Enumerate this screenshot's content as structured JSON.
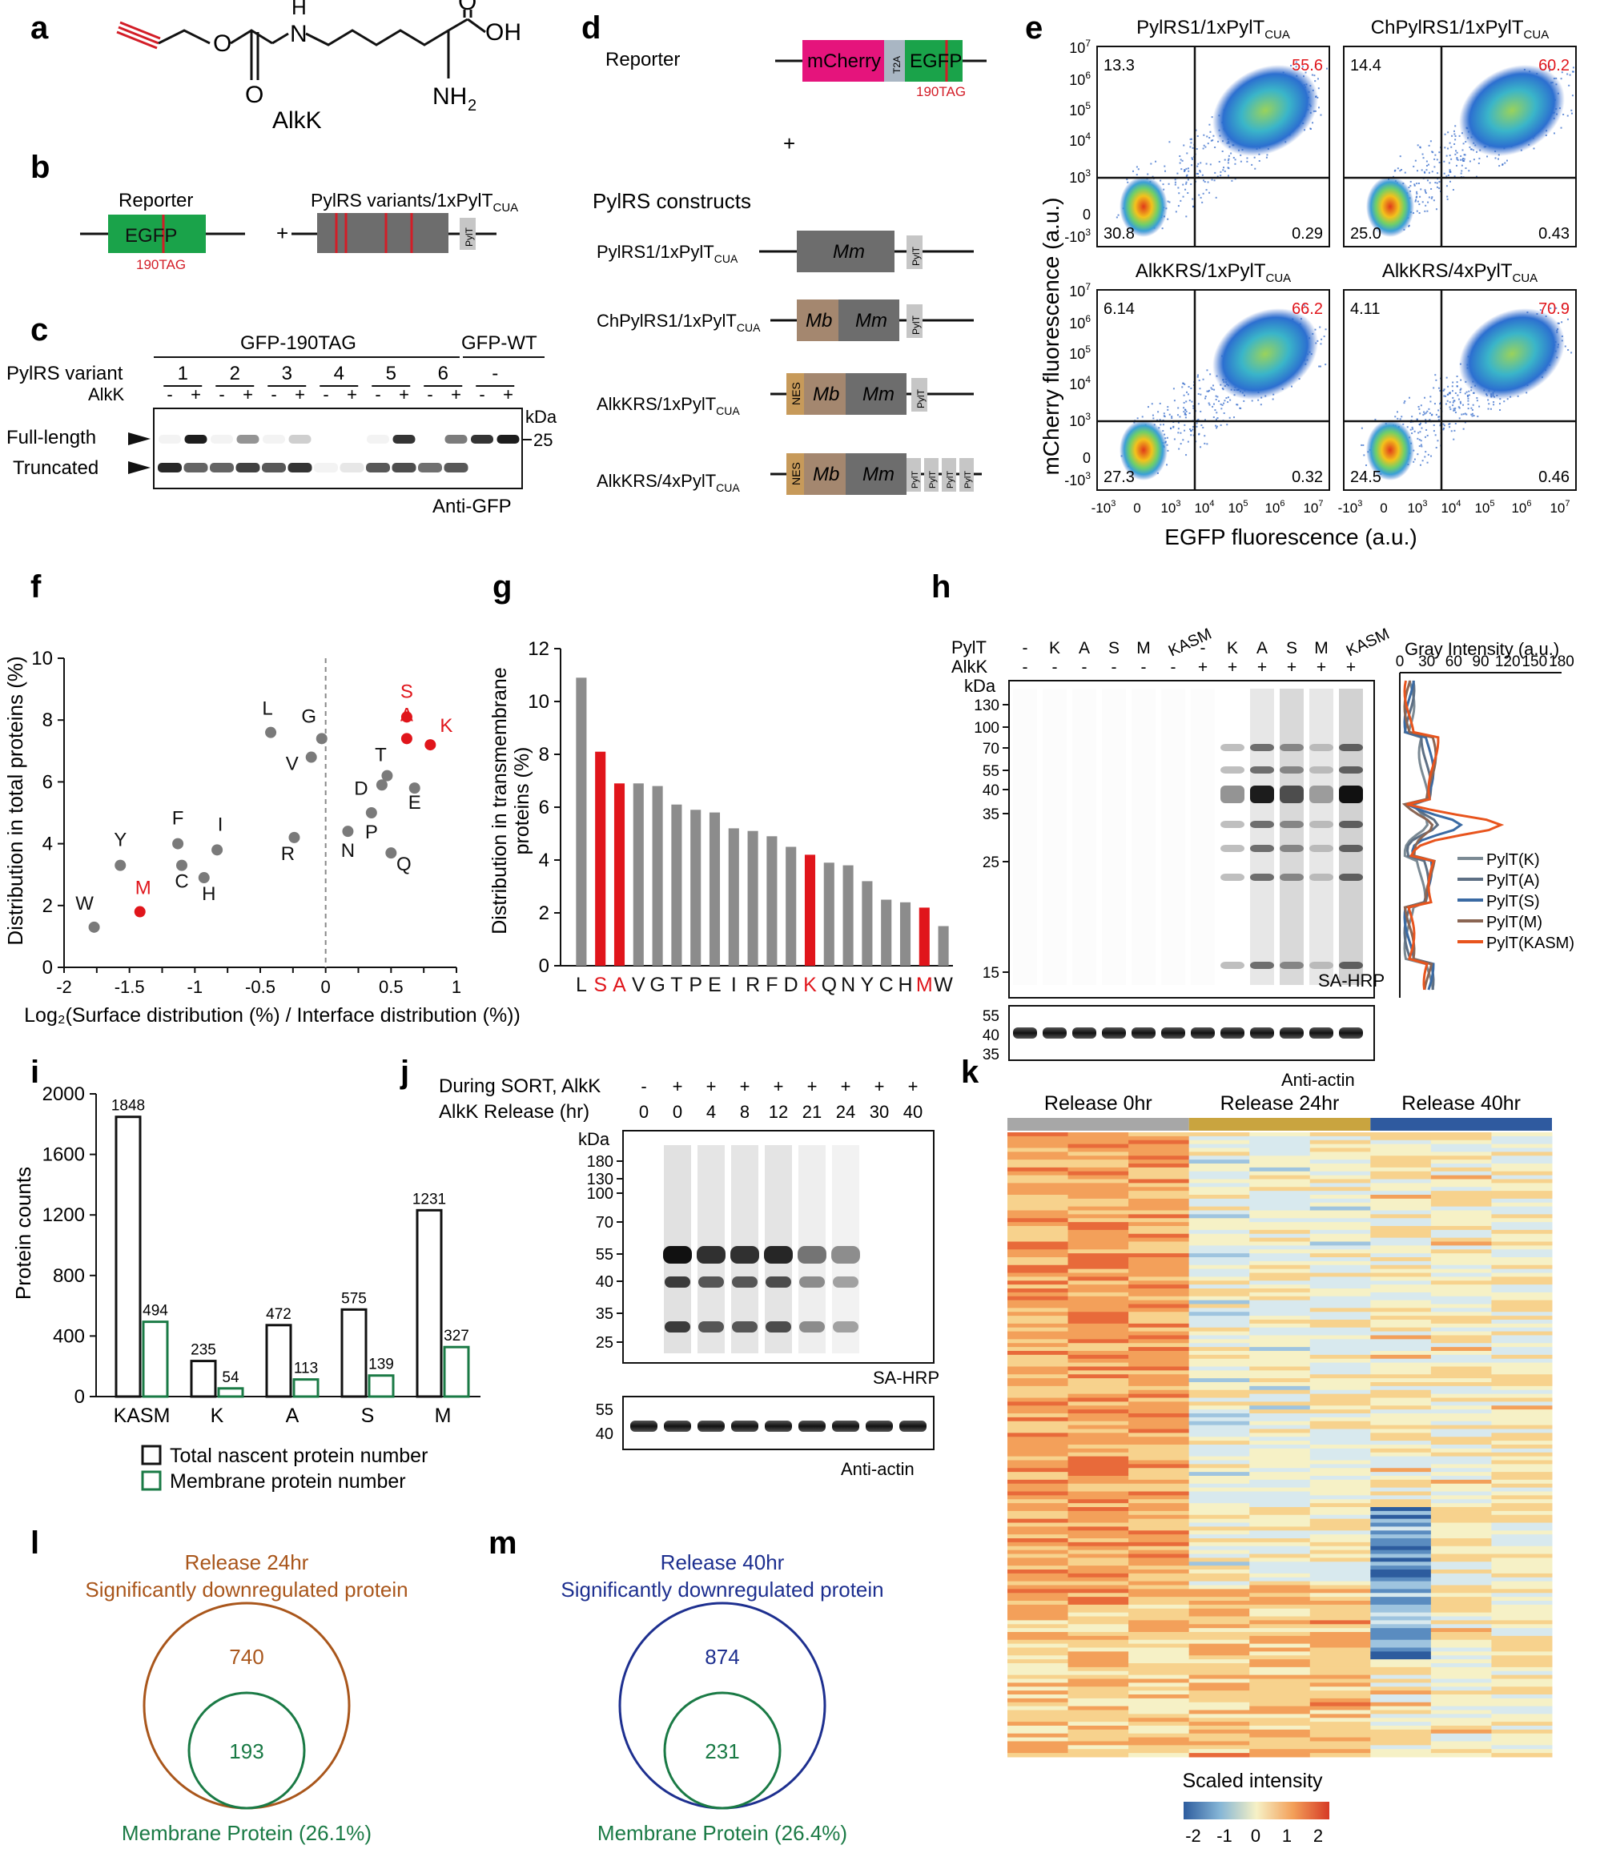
{
  "panels": {
    "a": {
      "letter": "a",
      "compound": "AlkK",
      "atoms": {
        "o1": "O",
        "o2": "O",
        "o3": "O",
        "oh": "OH",
        "nh_top": "H",
        "n_top": "N",
        "nh2": "NH",
        "sub2": "2"
      }
    },
    "b": {
      "letter": "b",
      "reporter_label": "Reporter",
      "egfp": "EGFP",
      "tag": "190TAG",
      "plus": "+",
      "pylrs_label": "PylRS variants/1xPylT",
      "pylrs_sub": "CUA",
      "pylt": "PylT"
    },
    "c": {
      "letter": "c",
      "gfp190": "GFP-190TAG",
      "gfpwt": "GFP-WT",
      "variant_label": "PylRS variant",
      "alkk_label": "AlkK",
      "variants": [
        "1",
        "2",
        "3",
        "4",
        "5",
        "6",
        "-"
      ],
      "signs": [
        "-",
        "+",
        "-",
        "+",
        "-",
        "+",
        "-",
        "+",
        "-",
        "+",
        "-",
        "+",
        "-",
        "+"
      ],
      "full_length": "Full-length",
      "truncated": "Truncated",
      "kda": "kDa",
      "marker": "25",
      "antibody": "Anti-GFP"
    },
    "d": {
      "letter": "d",
      "reporter_label": "Reporter",
      "mcherry": "mCherry",
      "t2a": "T2A",
      "egfp": "EGFP",
      "tag": "190TAG",
      "plus": "+",
      "constructs_label": "PylRS constructs",
      "constructs": [
        {
          "name": "PylRS1/1xPylT",
          "sub": "CUA"
        },
        {
          "name": "ChPylRS1/1xPylT",
          "sub": "CUA"
        },
        {
          "name": "AlkKRS/1xPylT",
          "sub": "CUA"
        },
        {
          "name": "AlkKRS/4xPylT",
          "sub": "CUA"
        }
      ],
      "mm": "Mm",
      "mb": "Mb",
      "nes": "NES",
      "pylt": "PylT"
    },
    "e": {
      "letter": "e",
      "titles": [
        {
          "name": "PylRS1/1xPylT",
          "sub": "CUA"
        },
        {
          "name": "ChPylRS1/1xPylT",
          "sub": "CUA"
        },
        {
          "name": "AlkKRS/1xPylT",
          "sub": "CUA"
        },
        {
          "name": "AlkKRS/4xPylT",
          "sub": "CUA"
        }
      ],
      "quadrants": [
        {
          "ul": "13.3",
          "ur": "55.6",
          "ll": "30.8",
          "lr": "0.29"
        },
        {
          "ul": "14.4",
          "ur": "60.2",
          "ll": "25.0",
          "lr": "0.43"
        },
        {
          "ul": "6.14",
          "ur": "66.2",
          "ll": "27.3",
          "lr": "0.32"
        },
        {
          "ul": "4.11",
          "ur": "70.9",
          "ll": "24.5",
          "lr": "0.46"
        }
      ],
      "ylabel": "mCherry fluorescence (a.u.)",
      "xlabel": "EGFP fluorescence (a.u.)",
      "yticks": [
        "10",
        "10",
        "10",
        "10",
        "10",
        "0",
        "-10"
      ],
      "yexp": [
        "7",
        "6",
        "5",
        "4",
        "3",
        "",
        "3"
      ],
      "xticks": [
        "-10",
        "0",
        "10",
        "10",
        "10",
        "10",
        "10"
      ],
      "xexp": [
        "3",
        "",
        "3",
        "4",
        "5",
        "6",
        "7"
      ]
    },
    "f": {
      "letter": "f",
      "ylabel": "Distribution in total proteins (%)",
      "xlabel": "Log₂(Surface distribution (%) / Interface distribution (%))"
    },
    "g": {
      "letter": "g",
      "ylabel_1": "Distribution in transmembrane",
      "ylabel_2": "proteins (%)"
    },
    "h": {
      "letter": "h",
      "pylt_label": "PylT",
      "alkk_label": "AlkK",
      "pylt_lanes": [
        "-",
        "K",
        "A",
        "S",
        "M",
        "KASM",
        "-",
        "K",
        "A",
        "S",
        "M",
        "KASM"
      ],
      "alkk_lanes": [
        "-",
        "-",
        "-",
        "-",
        "-",
        "-",
        "+",
        "+",
        "+",
        "+",
        "+",
        "+"
      ],
      "kda": "kDa",
      "markers": [
        "130",
        "100",
        "70",
        "55",
        "40",
        "35",
        "25",
        "15"
      ],
      "actin_markers": [
        "55",
        "40",
        "35"
      ],
      "sa_hrp": "SA-HRP",
      "anti_actin": "Anti-actin",
      "gray_title": "Gray Intensity (a.u.)",
      "gray_ticks": [
        "0",
        "30",
        "60",
        "90",
        "120",
        "150",
        "180"
      ],
      "legend": [
        "PylT(K)",
        "PylT(A)",
        "PylT(S)",
        "PylT(M)",
        "PylT(KASM)"
      ]
    },
    "i": {
      "letter": "i",
      "ylabel": "Protein counts",
      "legend_total": "Total nascent protein number",
      "legend_membrane": "Membrane protein number"
    },
    "j": {
      "letter": "j",
      "sort_label": "During SORT, AlkK",
      "release_label": "AlkK Release (hr)",
      "sort_lanes": [
        "-",
        "+",
        "+",
        "+",
        "+",
        "+",
        "+",
        "+",
        "+"
      ],
      "release_lanes": [
        "0",
        "0",
        "4",
        "8",
        "12",
        "21",
        "24",
        "30",
        "40"
      ],
      "kda": "kDa",
      "markers": [
        "180",
        "130",
        "100",
        "70",
        "55",
        "40",
        "35",
        "25"
      ],
      "actin_markers": [
        "55",
        "40"
      ],
      "sa_hrp": "SA-HRP",
      "anti_actin": "Anti-actin"
    },
    "k": {
      "letter": "k",
      "groups": [
        "Release 0hr",
        "Release 24hr",
        "Release 40hr"
      ],
      "scale_title": "Scaled intensity",
      "scale_ticks": [
        "-2",
        "-1",
        "0",
        "1",
        "2"
      ]
    },
    "l": {
      "letter": "l",
      "title_1": "Release 24hr",
      "title_2": "Significantly downregulated protein",
      "outer": "740",
      "inner": "193",
      "caption": "Membrane Protein (26.1%)"
    },
    "m": {
      "letter": "m",
      "title_1": "Release 40hr",
      "title_2": "Significantly downregulated protein",
      "outer": "874",
      "inner": "231",
      "caption": "Membrane Protein (26.4%)"
    }
  },
  "colors": {
    "red": "#e0151b",
    "gray": "#8c8c8c",
    "egfp_green": "#1aa34a",
    "mcherry_pink": "#e5147c",
    "mm_gray": "#6d6d6d",
    "mb_brown": "#a4876f",
    "nes_orange": "#c79a5a",
    "membrane_green": "#1a7a45",
    "l_brown": "#a9561b",
    "m_blue": "#1d2f8f",
    "k_gray": "#a7a7a7",
    "k_gold": "#c9a43f",
    "k_blue": "#2f5a9f"
  },
  "chart_data": [
    {
      "type": "scatter",
      "panel": "f",
      "xlim": [
        -2,
        1
      ],
      "ylim": [
        0,
        10
      ],
      "xticks": [
        "-2",
        "-1.75",
        "-1.5",
        "-1.25",
        "-1",
        "-0.75",
        "-0.5",
        "-0.25",
        "0",
        "0.25",
        "0.5",
        "0.75",
        "1"
      ],
      "yticks": [
        "0",
        "2",
        "4",
        "6",
        "8",
        "10"
      ],
      "points": [
        {
          "label": "L",
          "x": -0.42,
          "y": 7.6,
          "highlight": false
        },
        {
          "label": "G",
          "x": -0.03,
          "y": 7.4,
          "highlight": false
        },
        {
          "label": "V",
          "x": -0.11,
          "y": 6.8,
          "highlight": false
        },
        {
          "label": "S",
          "x": 0.62,
          "y": 8.1,
          "highlight": true
        },
        {
          "label": "A",
          "x": 0.62,
          "y": 7.4,
          "highlight": true
        },
        {
          "label": "K",
          "x": 0.8,
          "y": 7.2,
          "highlight": true
        },
        {
          "label": "T",
          "x": 0.47,
          "y": 6.2,
          "highlight": false
        },
        {
          "label": "D",
          "x": 0.43,
          "y": 5.9,
          "highlight": false
        },
        {
          "label": "E",
          "x": 0.68,
          "y": 5.8,
          "highlight": false
        },
        {
          "label": "P",
          "x": 0.35,
          "y": 5.0,
          "highlight": false
        },
        {
          "label": "N",
          "x": 0.17,
          "y": 4.4,
          "highlight": false
        },
        {
          "label": "R",
          "x": -0.24,
          "y": 4.2,
          "highlight": false
        },
        {
          "label": "Q",
          "x": 0.5,
          "y": 3.7,
          "highlight": false
        },
        {
          "label": "F",
          "x": -1.13,
          "y": 4.0,
          "highlight": false
        },
        {
          "label": "I",
          "x": -0.83,
          "y": 3.8,
          "highlight": false
        },
        {
          "label": "Y",
          "x": -1.57,
          "y": 3.3,
          "highlight": false
        },
        {
          "label": "C",
          "x": -1.1,
          "y": 3.3,
          "highlight": false
        },
        {
          "label": "H",
          "x": -0.93,
          "y": 2.9,
          "highlight": false
        },
        {
          "label": "M",
          "x": -1.42,
          "y": 1.8,
          "highlight": true
        },
        {
          "label": "W",
          "x": -1.77,
          "y": 1.3,
          "highlight": false
        }
      ]
    },
    {
      "type": "bar",
      "panel": "g",
      "ylim": [
        0,
        12
      ],
      "yticks": [
        "0",
        "2",
        "4",
        "6",
        "8",
        "10",
        "12"
      ],
      "categories": [
        "L",
        "S",
        "A",
        "V",
        "G",
        "T",
        "P",
        "E",
        "I",
        "R",
        "F",
        "D",
        "K",
        "Q",
        "N",
        "Y",
        "C",
        "H",
        "M",
        "W"
      ],
      "values": [
        10.9,
        8.1,
        6.9,
        6.9,
        6.8,
        6.1,
        5.9,
        5.8,
        5.2,
        5.1,
        4.9,
        4.5,
        4.2,
        3.9,
        3.8,
        3.2,
        2.5,
        2.4,
        2.2,
        1.5
      ],
      "highlight": [
        "S",
        "A",
        "K",
        "M"
      ]
    },
    {
      "type": "bar",
      "panel": "i",
      "ylim": [
        0,
        2000
      ],
      "yticks": [
        "0",
        "400",
        "800",
        "1200",
        "1600",
        "2000"
      ],
      "categories": [
        "KASM",
        "K",
        "A",
        "S",
        "M"
      ],
      "series": [
        {
          "name": "Total nascent protein number",
          "values": [
            1848,
            235,
            472,
            575,
            1231
          ],
          "labels": [
            "1848",
            "235",
            "472",
            "575",
            "1231"
          ]
        },
        {
          "name": "Membrane protein number",
          "values": [
            494,
            54,
            113,
            139,
            327
          ],
          "labels": [
            "494",
            "54",
            "113",
            "139",
            "327"
          ]
        }
      ]
    }
  ]
}
